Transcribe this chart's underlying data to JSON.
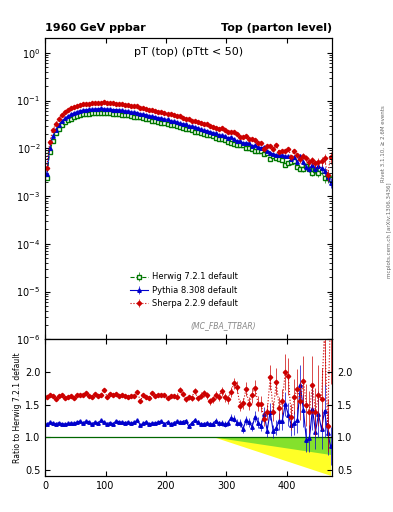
{
  "title_left": "1960 GeV ppbar",
  "title_right": "Top (parton level)",
  "main_title": "pT (top) (pTtt < 50)",
  "watermark": "(MC_FBA_TTBAR)",
  "right_label_top": "Rivet 3.1.10, ≥ 2.6M events",
  "right_label_bottom": "mcplots.cern.ch [arXiv:1306.3436]",
  "ylabel_ratio": "Ratio to Herwig 7.2.1 default",
  "background_color": "#ffffff",
  "herwig_color": "#007700",
  "pythia_color": "#0000cc",
  "sherpa_color": "#cc0000",
  "legend_labels": [
    "Herwig 7.2.1 default",
    "Pythia 8.308 default",
    "Sherpa 2.2.9 default"
  ],
  "xlim": [
    0,
    475
  ],
  "main_ylim": [
    1e-06,
    2.0
  ],
  "ratio_ylim": [
    0.4,
    2.5
  ],
  "ratio_yticks": [
    0.5,
    1.0,
    1.5,
    2.0
  ],
  "xticks": [
    0,
    100,
    200,
    300,
    400
  ]
}
